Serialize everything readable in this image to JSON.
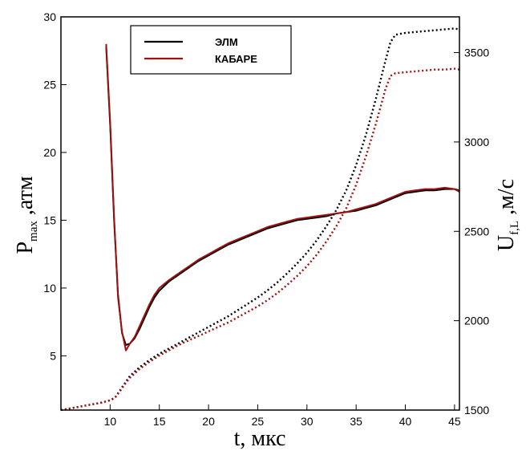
{
  "chart_data": {
    "type": "line",
    "xlabel": "t, мкс",
    "ylabel_left": {
      "main": "P",
      "sub": "max",
      "rest": " ,атм"
    },
    "ylabel_right": {
      "main": "U",
      "sub": "f,L",
      "rest": " ,м/с"
    },
    "xlim": [
      5,
      45.5
    ],
    "ylim_left": [
      1,
      30
    ],
    "ylim_right": [
      1500,
      3700
    ],
    "x_ticks": [
      10,
      15,
      20,
      25,
      30,
      35,
      40,
      45
    ],
    "y_left_ticks": [
      5,
      10,
      15,
      20,
      25,
      30
    ],
    "y_right_ticks": [
      1500,
      2000,
      2500,
      3000,
      3500
    ],
    "grid": false,
    "legend_position": "top-left",
    "colors": {
      "elm": "#000000",
      "kabare": "#a01010"
    },
    "series": [
      {
        "name": "ЭЛМ",
        "axis": "left",
        "style": "solid",
        "color": "#000000",
        "x": [
          9.6,
          10.0,
          10.4,
          10.8,
          11.2,
          11.6,
          12.0,
          12.5,
          13.0,
          13.5,
          14.0,
          14.5,
          15.0,
          16.0,
          17.0,
          18.0,
          19.0,
          20.0,
          21.0,
          22.0,
          23.0,
          24.0,
          25.0,
          26.0,
          27.0,
          28.0,
          29.0,
          30.0,
          31.0,
          32.0,
          33.0,
          34.0,
          35.0,
          36.0,
          37.0,
          38.0,
          39.0,
          40.0,
          41.0,
          42.0,
          43.0,
          44.0,
          45.0,
          45.5
        ],
        "y": [
          27.8,
          22.0,
          15.0,
          9.5,
          6.7,
          5.8,
          5.9,
          6.3,
          7.0,
          7.8,
          8.6,
          9.3,
          9.8,
          10.5,
          11.0,
          11.5,
          12.0,
          12.4,
          12.8,
          13.2,
          13.5,
          13.8,
          14.1,
          14.4,
          14.6,
          14.8,
          15.0,
          15.1,
          15.2,
          15.3,
          15.5,
          15.6,
          15.7,
          15.9,
          16.1,
          16.4,
          16.7,
          17.0,
          17.1,
          17.2,
          17.2,
          17.3,
          17.3,
          17.2
        ]
      },
      {
        "name": "КАБАРЕ",
        "axis": "left",
        "style": "solid",
        "color": "#a01010",
        "x": [
          9.6,
          10.0,
          10.4,
          10.8,
          11.2,
          11.6,
          12.0,
          12.5,
          13.0,
          13.5,
          14.0,
          14.5,
          15.0,
          16.0,
          17.0,
          18.0,
          19.0,
          20.0,
          21.0,
          22.0,
          23.0,
          24.0,
          25.0,
          26.0,
          27.0,
          28.0,
          29.0,
          30.0,
          31.0,
          32.0,
          33.0,
          34.0,
          35.0,
          36.0,
          37.0,
          38.0,
          39.0,
          40.0,
          41.0,
          42.0,
          43.0,
          44.0,
          45.0,
          45.5
        ],
        "y": [
          28.0,
          22.2,
          15.2,
          9.3,
          6.8,
          5.4,
          5.9,
          6.4,
          7.2,
          8.0,
          8.8,
          9.5,
          10.0,
          10.6,
          11.1,
          11.6,
          12.1,
          12.5,
          12.9,
          13.3,
          13.6,
          13.9,
          14.2,
          14.5,
          14.7,
          14.9,
          15.1,
          15.2,
          15.3,
          15.4,
          15.5,
          15.6,
          15.8,
          16.0,
          16.2,
          16.5,
          16.8,
          17.1,
          17.2,
          17.3,
          17.3,
          17.4,
          17.3,
          17.1
        ]
      },
      {
        "name": "ЭЛМ",
        "axis": "right",
        "style": "dotted",
        "color": "#000000",
        "x": [
          5,
          6,
          7,
          8,
          9,
          10,
          10.5,
          11,
          11.5,
          12,
          13,
          14,
          15,
          16,
          17,
          18,
          19,
          20,
          21,
          22,
          23,
          24,
          25,
          26,
          27,
          28,
          29,
          30,
          31,
          32,
          33,
          34,
          35,
          36,
          37,
          38,
          38.5,
          39,
          40,
          41,
          42,
          43,
          44,
          45,
          45.5
        ],
        "y": [
          1500,
          1510,
          1520,
          1530,
          1540,
          1555,
          1570,
          1610,
          1650,
          1690,
          1740,
          1780,
          1815,
          1845,
          1875,
          1905,
          1935,
          1965,
          1995,
          2025,
          2060,
          2095,
          2130,
          2170,
          2215,
          2265,
          2320,
          2380,
          2450,
          2530,
          2620,
          2730,
          2870,
          3040,
          3240,
          3460,
          3560,
          3600,
          3610,
          3615,
          3620,
          3625,
          3630,
          3635,
          3630
        ]
      },
      {
        "name": "КАБАРЕ",
        "axis": "right",
        "style": "dotted",
        "color": "#a01010",
        "x": [
          5,
          6,
          7,
          8,
          9,
          10,
          10.5,
          11,
          11.5,
          12,
          13,
          14,
          15,
          16,
          17,
          18,
          19,
          20,
          21,
          22,
          23,
          24,
          25,
          26,
          27,
          28,
          29,
          30,
          31,
          32,
          33,
          34,
          35,
          36,
          37,
          38,
          38.5,
          39,
          40,
          41,
          42,
          43,
          44,
          45,
          45.5
        ],
        "y": [
          1500,
          1510,
          1520,
          1530,
          1540,
          1555,
          1570,
          1605,
          1645,
          1680,
          1730,
          1770,
          1805,
          1835,
          1865,
          1890,
          1915,
          1940,
          1965,
          1990,
          2020,
          2050,
          2080,
          2115,
          2155,
          2200,
          2250,
          2305,
          2370,
          2445,
          2530,
          2630,
          2760,
          2920,
          3100,
          3300,
          3370,
          3385,
          3390,
          3395,
          3400,
          3405,
          3405,
          3410,
          3405
        ]
      }
    ]
  }
}
